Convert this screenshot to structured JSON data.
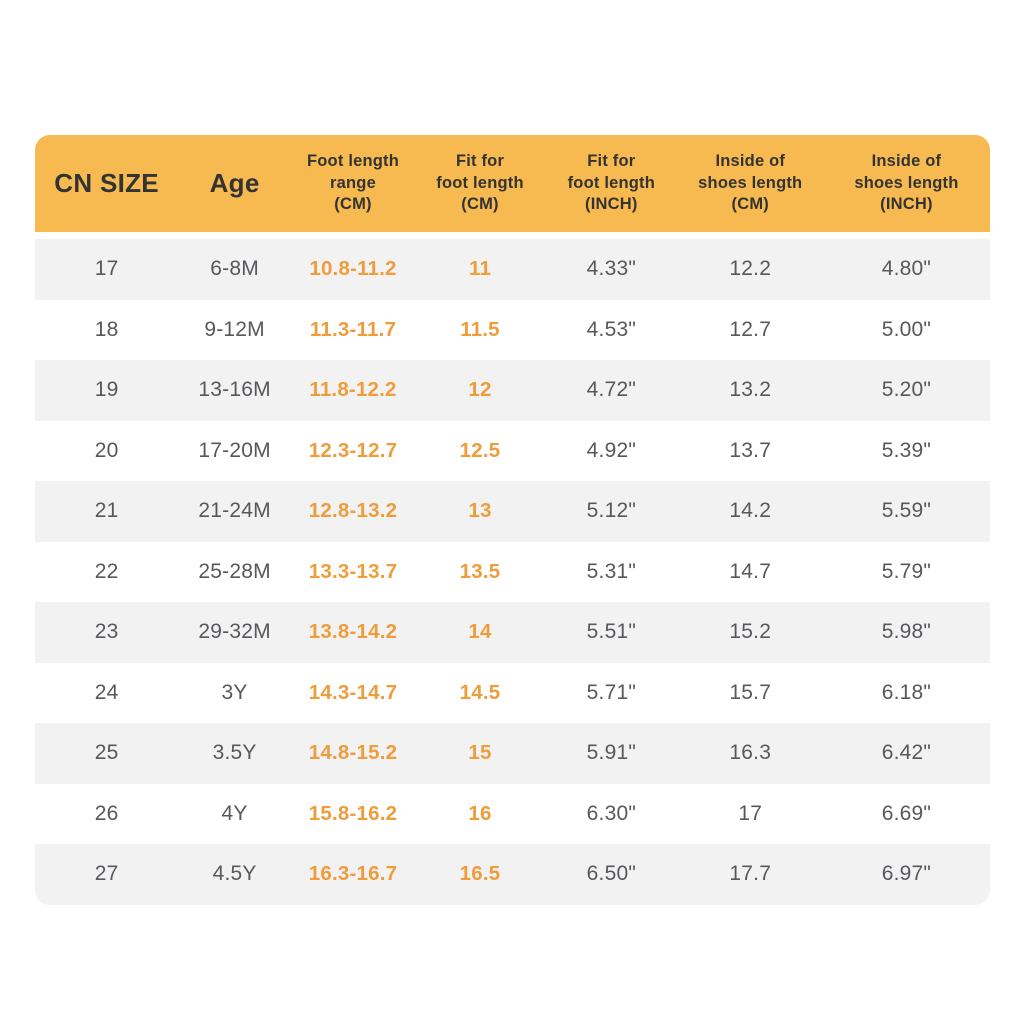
{
  "colors": {
    "page_background": "#FFFFFF",
    "header_background": "#F7BA50",
    "header_text": "#333333",
    "row_alt_background": "#F2F2F3",
    "row_background": "#FFFFFF",
    "data_text": "#58585C",
    "accent_text": "#EF9C3A",
    "accent_column_indexes": [
      2,
      3
    ]
  },
  "chart_data": {
    "type": "table",
    "columns": [
      "CN SIZE",
      "Age",
      "Foot length\nrange\n(CM)",
      "Fit for\nfoot length\n(CM)",
      "Fit for\nfoot length\n(INCH)",
      "Inside of\nshoes length\n(CM)",
      "Inside of\nshoes length\n(INCH)"
    ],
    "rows": [
      [
        "17",
        "6-8M",
        "10.8-11.2",
        "11",
        "4.33\"",
        "12.2",
        "4.80\""
      ],
      [
        "18",
        "9-12M",
        "11.3-11.7",
        "11.5",
        "4.53\"",
        "12.7",
        "5.00\""
      ],
      [
        "19",
        "13-16M",
        "11.8-12.2",
        "12",
        "4.72\"",
        "13.2",
        "5.20\""
      ],
      [
        "20",
        "17-20M",
        "12.3-12.7",
        "12.5",
        "4.92\"",
        "13.7",
        "5.39\""
      ],
      [
        "21",
        "21-24M",
        "12.8-13.2",
        "13",
        "5.12\"",
        "14.2",
        "5.59\""
      ],
      [
        "22",
        "25-28M",
        "13.3-13.7",
        "13.5",
        "5.31\"",
        "14.7",
        "5.79\""
      ],
      [
        "23",
        "29-32M",
        "13.8-14.2",
        "14",
        "5.51\"",
        "15.2",
        "5.98\""
      ],
      [
        "24",
        "3Y",
        "14.3-14.7",
        "14.5",
        "5.71\"",
        "15.7",
        "6.18\""
      ],
      [
        "25",
        "3.5Y",
        "14.8-15.2",
        "15",
        "5.91\"",
        "16.3",
        "6.42\""
      ],
      [
        "26",
        "4Y",
        "15.8-16.2",
        "16",
        "6.30\"",
        "17",
        "6.69\""
      ],
      [
        "27",
        "4.5Y",
        "16.3-16.7",
        "16.5",
        "6.50\"",
        "17.7",
        "6.97\""
      ]
    ]
  }
}
